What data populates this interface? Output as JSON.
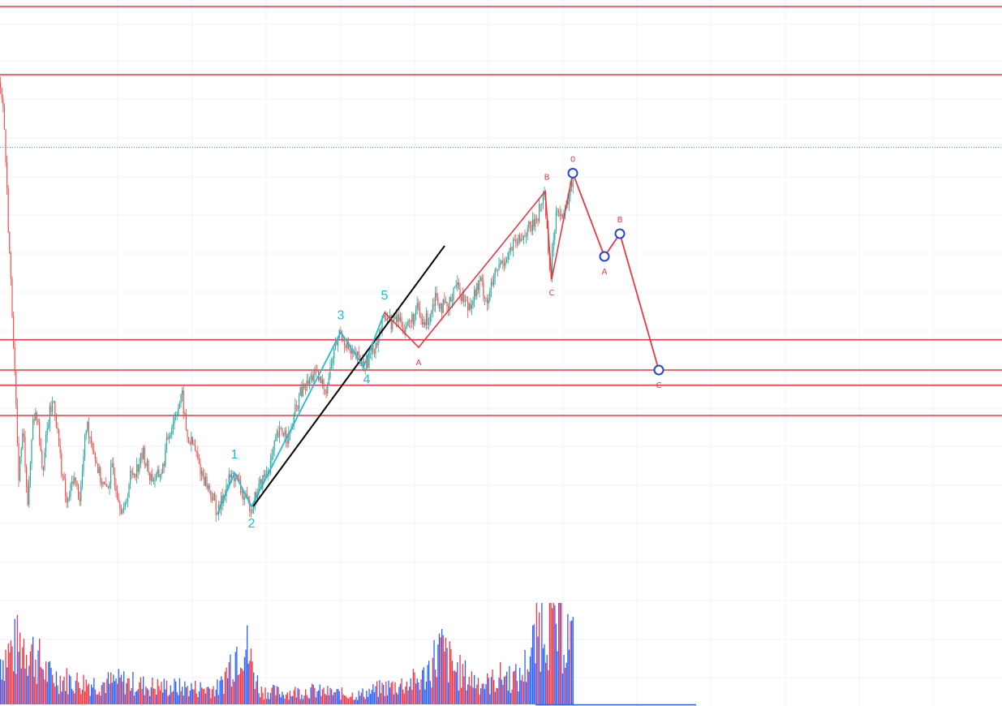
{
  "chart_data": {
    "type": "line",
    "grid": true,
    "colors": {
      "up_candle": "#26a69a",
      "down_candle": "#ef5350",
      "volume_up": "#2962ff",
      "volume_down": "#f23645",
      "horizontal_level": "#e53943",
      "impulse_wave": "#22bcd0",
      "correction_wave": "#e53943",
      "trendline": "#000000",
      "projection_point": "#2348c8",
      "last_price_line": "#26a69a"
    },
    "horizontal_levels": [
      870,
      825,
      650,
      630,
      620,
      600
    ],
    "last_price_level": 777,
    "price_path": [
      {
        "t": 0,
        "p": 820
      },
      {
        "t": 4,
        "p": 800
      },
      {
        "t": 10,
        "p": 720
      },
      {
        "t": 16,
        "p": 650
      },
      {
        "t": 22,
        "p": 560
      },
      {
        "t": 28,
        "p": 590
      },
      {
        "t": 34,
        "p": 540
      },
      {
        "t": 40,
        "p": 600
      },
      {
        "t": 46,
        "p": 600
      },
      {
        "t": 52,
        "p": 565
      },
      {
        "t": 60,
        "p": 600
      },
      {
        "t": 66,
        "p": 610
      },
      {
        "t": 74,
        "p": 570
      },
      {
        "t": 82,
        "p": 540
      },
      {
        "t": 90,
        "p": 560
      },
      {
        "t": 98,
        "p": 545
      },
      {
        "t": 106,
        "p": 595
      },
      {
        "t": 114,
        "p": 580
      },
      {
        "t": 122,
        "p": 560
      },
      {
        "t": 130,
        "p": 550
      },
      {
        "t": 138,
        "p": 565
      },
      {
        "t": 146,
        "p": 545
      },
      {
        "t": 152,
        "p": 535
      },
      {
        "t": 160,
        "p": 560
      },
      {
        "t": 168,
        "p": 565
      },
      {
        "t": 176,
        "p": 575
      },
      {
        "t": 184,
        "p": 560
      },
      {
        "t": 192,
        "p": 558
      },
      {
        "t": 200,
        "p": 565
      },
      {
        "t": 206,
        "p": 585
      },
      {
        "t": 212,
        "p": 595
      },
      {
        "t": 218,
        "p": 605
      },
      {
        "t": 224,
        "p": 612
      },
      {
        "t": 230,
        "p": 585
      },
      {
        "t": 238,
        "p": 580
      },
      {
        "t": 246,
        "p": 565
      },
      {
        "t": 254,
        "p": 555
      },
      {
        "t": 262,
        "p": 545
      },
      {
        "t": 268,
        "p": 535
      },
      {
        "t": 276,
        "p": 550
      },
      {
        "t": 284,
        "p": 560
      },
      {
        "t": 290,
        "p": 560
      },
      {
        "t": 298,
        "p": 548
      },
      {
        "t": 304,
        "p": 542
      },
      {
        "t": 310,
        "p": 540
      },
      {
        "t": 318,
        "p": 552
      },
      {
        "t": 326,
        "p": 560
      },
      {
        "t": 334,
        "p": 570
      },
      {
        "t": 340,
        "p": 585
      },
      {
        "t": 348,
        "p": 590
      },
      {
        "t": 356,
        "p": 585
      },
      {
        "t": 362,
        "p": 600
      },
      {
        "t": 370,
        "p": 615
      },
      {
        "t": 378,
        "p": 620
      },
      {
        "t": 386,
        "p": 628
      },
      {
        "t": 394,
        "p": 622
      },
      {
        "t": 402,
        "p": 618
      },
      {
        "t": 410,
        "p": 640
      },
      {
        "t": 418,
        "p": 655
      },
      {
        "t": 424,
        "p": 650
      },
      {
        "t": 432,
        "p": 640
      },
      {
        "t": 440,
        "p": 638
      },
      {
        "t": 448,
        "p": 632
      },
      {
        "t": 456,
        "p": 640
      },
      {
        "t": 464,
        "p": 650
      },
      {
        "t": 470,
        "p": 660
      },
      {
        "t": 476,
        "p": 668
      },
      {
        "t": 482,
        "p": 660
      },
      {
        "t": 490,
        "p": 665
      },
      {
        "t": 498,
        "p": 658
      },
      {
        "t": 506,
        "p": 662
      },
      {
        "t": 514,
        "p": 670
      },
      {
        "t": 520,
        "p": 660
      },
      {
        "t": 528,
        "p": 665
      },
      {
        "t": 536,
        "p": 680
      },
      {
        "t": 544,
        "p": 672
      },
      {
        "t": 552,
        "p": 670
      },
      {
        "t": 560,
        "p": 688
      },
      {
        "t": 568,
        "p": 680
      },
      {
        "t": 576,
        "p": 672
      },
      {
        "t": 584,
        "p": 680
      },
      {
        "t": 592,
        "p": 688
      },
      {
        "t": 600,
        "p": 675
      },
      {
        "t": 608,
        "p": 690
      },
      {
        "t": 616,
        "p": 700
      },
      {
        "t": 624,
        "p": 705
      },
      {
        "t": 632,
        "p": 712
      },
      {
        "t": 640,
        "p": 715
      },
      {
        "t": 648,
        "p": 722
      },
      {
        "t": 656,
        "p": 725
      },
      {
        "t": 664,
        "p": 735
      },
      {
        "t": 670,
        "p": 748
      },
      {
        "t": 674,
        "p": 720
      },
      {
        "t": 678,
        "p": 690
      },
      {
        "t": 682,
        "p": 720
      },
      {
        "t": 686,
        "p": 740
      },
      {
        "t": 690,
        "p": 735
      },
      {
        "t": 694,
        "p": 728
      },
      {
        "t": 698,
        "p": 740
      },
      {
        "t": 702,
        "p": 748
      },
      {
        "t": 706,
        "p": 760
      }
    ],
    "volume": [
      {
        "t": 0,
        "v": 40
      },
      {
        "t": 30,
        "v": 55
      },
      {
        "t": 60,
        "v": 25
      },
      {
        "t": 90,
        "v": 20
      },
      {
        "t": 120,
        "v": 18
      },
      {
        "t": 150,
        "v": 20
      },
      {
        "t": 180,
        "v": 16
      },
      {
        "t": 210,
        "v": 15
      },
      {
        "t": 240,
        "v": 14
      },
      {
        "t": 270,
        "v": 14
      },
      {
        "t": 298,
        "v": 60
      },
      {
        "t": 320,
        "v": 12
      },
      {
        "t": 350,
        "v": 10
      },
      {
        "t": 380,
        "v": 12
      },
      {
        "t": 410,
        "v": 10
      },
      {
        "t": 440,
        "v": 8
      },
      {
        "t": 470,
        "v": 14
      },
      {
        "t": 500,
        "v": 18
      },
      {
        "t": 520,
        "v": 22
      },
      {
        "t": 542,
        "v": 48
      },
      {
        "t": 560,
        "v": 30
      },
      {
        "t": 580,
        "v": 22
      },
      {
        "t": 600,
        "v": 18
      },
      {
        "t": 620,
        "v": 25
      },
      {
        "t": 640,
        "v": 22
      },
      {
        "t": 660,
        "v": 55
      },
      {
        "t": 668,
        "v": 80
      },
      {
        "t": 680,
        "v": 70
      },
      {
        "t": 700,
        "v": 60
      },
      {
        "t": 706,
        "v": 50
      }
    ],
    "volume_max": 80,
    "impulse_wave": {
      "points": [
        {
          "label": "",
          "t": 268,
          "p": 535
        },
        {
          "label": "1",
          "t": 289,
          "p": 562
        },
        {
          "label": "2",
          "t": 310,
          "p": 540
        },
        {
          "label": "3",
          "t": 420,
          "p": 655
        },
        {
          "label": "4",
          "t": 448,
          "p": 632
        },
        {
          "label": "5",
          "t": 474,
          "p": 668
        }
      ]
    },
    "correction_wave_past": {
      "points": [
        {
          "label": "",
          "t": 474,
          "p": 668
        },
        {
          "label": "A",
          "t": 516,
          "p": 645
        },
        {
          "label": "B",
          "t": 672,
          "p": 748
        },
        {
          "label": "C",
          "t": 680,
          "p": 690
        },
        {
          "label": "0",
          "t": 706,
          "p": 760
        }
      ]
    },
    "correction_wave_projection": {
      "points": [
        {
          "label": "0",
          "t": 706,
          "p": 760
        },
        {
          "label": "A",
          "t": 745,
          "p": 705
        },
        {
          "label": "B",
          "t": 764,
          "p": 720
        },
        {
          "label": "C",
          "t": 812,
          "p": 630
        }
      ]
    },
    "trendline": [
      {
        "t": 312,
        "p": 540
      },
      {
        "t": 548,
        "p": 712
      }
    ]
  }
}
